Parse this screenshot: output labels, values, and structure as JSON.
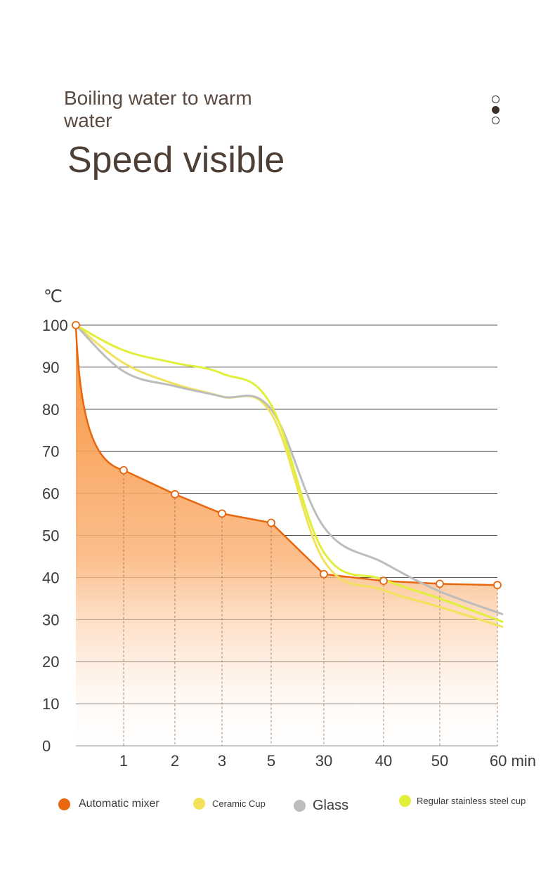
{
  "header": {
    "subtitle": "Boiling water to warm water",
    "title": "Speed visible"
  },
  "pager": {
    "count": 3,
    "active_index": 1
  },
  "chart_data": {
    "type": "line",
    "ylabel": "℃",
    "x_unit": "min",
    "categories": [
      "0",
      "1",
      "2",
      "3",
      "5",
      "30",
      "40",
      "50",
      "60"
    ],
    "y_ticks": [
      0,
      10,
      20,
      30,
      40,
      50,
      60,
      70,
      80,
      90,
      100
    ],
    "ylim": [
      0,
      100
    ],
    "grid": true,
    "legend_position": "bottom",
    "series": [
      {
        "name": "Automatic mixer",
        "color": "#e8670e",
        "style": "area-with-markers",
        "values": [
          100,
          65.5,
          59.8,
          55.2,
          53,
          40.8,
          39.2,
          38.5,
          38.2
        ]
      },
      {
        "name": "Ceramic Cup",
        "color": "#f2e25a",
        "style": "line",
        "values": [
          100,
          91,
          86,
          83,
          79,
          44,
          37,
          33,
          28.3
        ]
      },
      {
        "name": "Glass",
        "color": "#bdbdbd",
        "style": "line",
        "values": [
          100,
          89,
          85.5,
          83,
          80,
          52,
          43.5,
          36.7,
          31.3
        ]
      },
      {
        "name": "Regular stainless steel cup",
        "color": "#e0ef3a",
        "style": "line",
        "values": [
          100,
          94,
          91,
          88.5,
          81,
          46,
          39.5,
          35,
          29.5
        ]
      }
    ]
  }
}
